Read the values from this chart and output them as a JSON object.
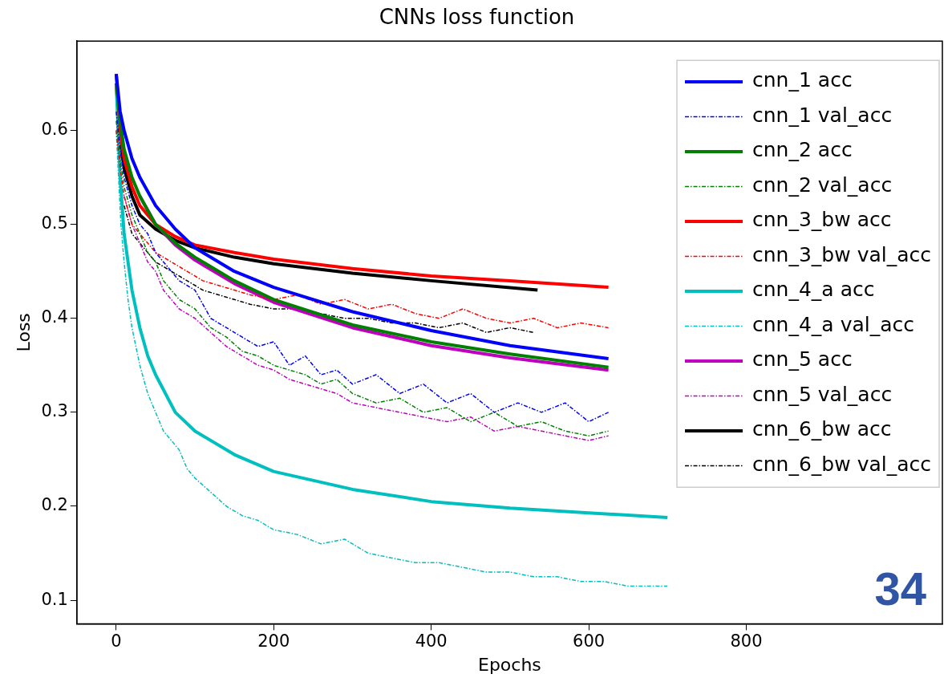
{
  "chart_data": {
    "type": "line",
    "title": "CNNs loss function",
    "xlabel": "Epochs",
    "ylabel": "Loss",
    "xlim": [
      -50,
      1049
    ],
    "xticks": [
      0,
      200,
      400,
      600,
      800
    ],
    "ylim": [
      0.075,
      0.695
    ],
    "yticks": [
      0.1,
      0.2,
      0.3,
      0.4,
      0.5,
      0.6
    ],
    "grid": false,
    "legend": "top right",
    "marker": "none",
    "annotations": [
      "34"
    ],
    "series": [
      {
        "name": "cnn_1 acc",
        "color": "#0000ff",
        "line_style": "solid",
        "x": [
          0,
          5,
          10,
          20,
          30,
          50,
          75,
          100,
          150,
          200,
          300,
          400,
          500,
          625
        ],
        "values": [
          0.66,
          0.62,
          0.6,
          0.57,
          0.55,
          0.52,
          0.495,
          0.475,
          0.45,
          0.433,
          0.407,
          0.387,
          0.371,
          0.357
        ]
      },
      {
        "name": "cnn_1 val_acc",
        "color": "#0000ff",
        "line_style": "dashed",
        "x": [
          0,
          5,
          10,
          20,
          30,
          40,
          50,
          60,
          70,
          80,
          100,
          120,
          140,
          160,
          180,
          200,
          220,
          240,
          260,
          280,
          300,
          330,
          360,
          390,
          420,
          450,
          480,
          510,
          540,
          570,
          600,
          625
        ],
        "values": [
          0.62,
          0.58,
          0.55,
          0.52,
          0.5,
          0.49,
          0.47,
          0.46,
          0.45,
          0.44,
          0.43,
          0.4,
          0.39,
          0.38,
          0.37,
          0.375,
          0.35,
          0.36,
          0.34,
          0.345,
          0.33,
          0.34,
          0.32,
          0.33,
          0.31,
          0.32,
          0.3,
          0.31,
          0.3,
          0.31,
          0.29,
          0.3
        ]
      },
      {
        "name": "cnn_2 acc",
        "color": "#008000",
        "line_style": "solid",
        "x": [
          0,
          5,
          10,
          20,
          30,
          50,
          75,
          100,
          150,
          200,
          300,
          400,
          500,
          625
        ],
        "values": [
          0.65,
          0.61,
          0.58,
          0.55,
          0.53,
          0.5,
          0.48,
          0.465,
          0.44,
          0.42,
          0.393,
          0.375,
          0.362,
          0.348
        ]
      },
      {
        "name": "cnn_2 val_acc",
        "color": "#008000",
        "line_style": "dashed",
        "x": [
          0,
          5,
          10,
          20,
          30,
          40,
          50,
          60,
          70,
          80,
          100,
          120,
          140,
          160,
          180,
          200,
          220,
          240,
          260,
          280,
          300,
          330,
          360,
          390,
          420,
          450,
          480,
          510,
          540,
          570,
          600,
          625
        ],
        "values": [
          0.61,
          0.57,
          0.54,
          0.51,
          0.49,
          0.47,
          0.46,
          0.44,
          0.43,
          0.42,
          0.41,
          0.39,
          0.38,
          0.365,
          0.36,
          0.35,
          0.345,
          0.34,
          0.33,
          0.335,
          0.32,
          0.31,
          0.315,
          0.3,
          0.305,
          0.29,
          0.3,
          0.285,
          0.29,
          0.28,
          0.275,
          0.28
        ]
      },
      {
        "name": "cnn_3_bw acc",
        "color": "#ff0000",
        "line_style": "solid",
        "x": [
          0,
          5,
          10,
          20,
          30,
          50,
          75,
          100,
          150,
          200,
          300,
          400,
          500,
          625
        ],
        "values": [
          0.66,
          0.6,
          0.57,
          0.54,
          0.52,
          0.5,
          0.487,
          0.478,
          0.47,
          0.463,
          0.453,
          0.445,
          0.44,
          0.433
        ]
      },
      {
        "name": "cnn_3_bw val_acc",
        "color": "#ff0000",
        "line_style": "dashed",
        "x": [
          0,
          5,
          10,
          20,
          30,
          40,
          50,
          70,
          90,
          110,
          130,
          150,
          170,
          200,
          230,
          260,
          290,
          320,
          350,
          380,
          410,
          440,
          470,
          500,
          530,
          560,
          590,
          625
        ],
        "values": [
          0.6,
          0.56,
          0.53,
          0.5,
          0.49,
          0.48,
          0.47,
          0.46,
          0.45,
          0.44,
          0.435,
          0.43,
          0.425,
          0.42,
          0.425,
          0.415,
          0.42,
          0.41,
          0.415,
          0.405,
          0.4,
          0.41,
          0.4,
          0.395,
          0.4,
          0.39,
          0.395,
          0.39
        ]
      },
      {
        "name": "cnn_4_a acc",
        "color": "#00bfbf",
        "line_style": "solid",
        "x": [
          0,
          5,
          10,
          20,
          30,
          40,
          50,
          75,
          100,
          150,
          200,
          300,
          400,
          500,
          600,
          700
        ],
        "values": [
          0.65,
          0.55,
          0.49,
          0.43,
          0.39,
          0.36,
          0.34,
          0.3,
          0.28,
          0.255,
          0.237,
          0.218,
          0.205,
          0.198,
          0.193,
          0.188
        ]
      },
      {
        "name": "cnn_4_a val_acc",
        "color": "#00bfbf",
        "line_style": "dashed",
        "x": [
          0,
          3,
          6,
          10,
          15,
          20,
          25,
          30,
          40,
          50,
          60,
          70,
          80,
          90,
          100,
          120,
          140,
          160,
          180,
          200,
          230,
          260,
          290,
          320,
          350,
          380,
          410,
          440,
          470,
          500,
          530,
          560,
          590,
          620,
          650,
          680,
          700
        ],
        "values": [
          0.6,
          0.55,
          0.5,
          0.46,
          0.42,
          0.39,
          0.37,
          0.35,
          0.32,
          0.3,
          0.28,
          0.27,
          0.26,
          0.24,
          0.23,
          0.215,
          0.2,
          0.19,
          0.185,
          0.175,
          0.17,
          0.16,
          0.165,
          0.15,
          0.145,
          0.14,
          0.14,
          0.135,
          0.13,
          0.13,
          0.125,
          0.125,
          0.12,
          0.12,
          0.115,
          0.115,
          0.115
        ]
      },
      {
        "name": "cnn_5 acc",
        "color": "#bf00bf",
        "line_style": "solid",
        "x": [
          30,
          50,
          75,
          100,
          150,
          200,
          300,
          400,
          500,
          625
        ],
        "values": [
          0.53,
          0.5,
          0.478,
          0.462,
          0.437,
          0.417,
          0.39,
          0.371,
          0.358,
          0.345
        ]
      },
      {
        "name": "cnn_5 val_acc",
        "color": "#bf00bf",
        "line_style": "dashed",
        "x": [
          10,
          20,
          30,
          40,
          50,
          60,
          70,
          80,
          100,
          120,
          140,
          160,
          180,
          200,
          220,
          240,
          260,
          280,
          300,
          330,
          360,
          390,
          420,
          450,
          480,
          510,
          540,
          570,
          600,
          625
        ],
        "values": [
          0.53,
          0.5,
          0.48,
          0.46,
          0.45,
          0.43,
          0.42,
          0.41,
          0.4,
          0.385,
          0.37,
          0.36,
          0.35,
          0.345,
          0.335,
          0.33,
          0.325,
          0.32,
          0.31,
          0.305,
          0.3,
          0.295,
          0.29,
          0.295,
          0.28,
          0.285,
          0.28,
          0.275,
          0.27,
          0.275
        ]
      },
      {
        "name": "cnn_6_bw acc",
        "color": "#000000",
        "line_style": "solid",
        "x": [
          0,
          5,
          10,
          20,
          30,
          50,
          75,
          100,
          150,
          200,
          300,
          400,
          535
        ],
        "values": [
          0.65,
          0.59,
          0.56,
          0.53,
          0.51,
          0.495,
          0.483,
          0.475,
          0.465,
          0.458,
          0.448,
          0.44,
          0.43
        ]
      },
      {
        "name": "cnn_6_bw val_acc",
        "color": "#000000",
        "line_style": "dashed",
        "x": [
          10,
          20,
          30,
          40,
          50,
          70,
          90,
          110,
          130,
          150,
          170,
          200,
          230,
          260,
          290,
          320,
          350,
          380,
          410,
          440,
          470,
          500,
          530
        ],
        "values": [
          0.52,
          0.49,
          0.48,
          0.47,
          0.46,
          0.45,
          0.44,
          0.43,
          0.425,
          0.42,
          0.415,
          0.41,
          0.41,
          0.405,
          0.4,
          0.4,
          0.395,
          0.395,
          0.39,
          0.395,
          0.385,
          0.39,
          0.385
        ]
      }
    ]
  }
}
